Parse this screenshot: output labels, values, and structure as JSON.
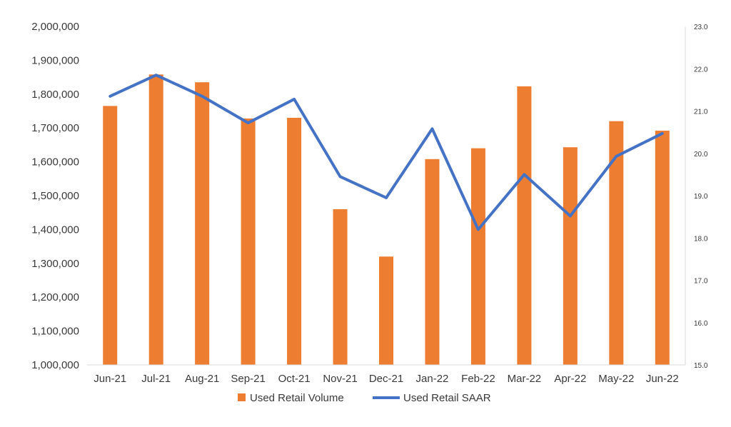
{
  "chart_data": {
    "type": "bar",
    "categories": [
      "Jun-21",
      "Jul-21",
      "Aug-21",
      "Sep-21",
      "Oct-21",
      "Nov-21",
      "Dec-21",
      "Jan-22",
      "Feb-22",
      "Mar-22",
      "Apr-22",
      "May-22",
      "Jun-22"
    ],
    "series": [
      {
        "name": "Used Retail Volume",
        "type": "bar",
        "axis": "left",
        "color": "#ED7D31",
        "values": [
          1765000,
          1858000,
          1835000,
          1728000,
          1730000,
          1460000,
          1320000,
          1608000,
          1640000,
          1823000,
          1643000,
          1720000,
          1692000
        ]
      },
      {
        "name": "Used Retail SAAR",
        "type": "line",
        "axis": "right",
        "color": "#4472C4",
        "values": [
          21.35,
          21.85,
          21.35,
          20.72,
          21.28,
          19.45,
          18.95,
          20.58,
          18.2,
          19.5,
          18.52,
          19.93,
          20.47
        ]
      }
    ],
    "y_left": {
      "range": [
        1000000,
        2000000
      ],
      "ticks": [
        "1,000,000",
        "1,100,000",
        "1,200,000",
        "1,300,000",
        "1,400,000",
        "1,500,000",
        "1,600,000",
        "1,700,000",
        "1,800,000",
        "1,900,000",
        "2,000,000"
      ]
    },
    "y_right": {
      "range": [
        15.0,
        23.0
      ],
      "ticks": [
        "15.0",
        "16.0",
        "17.0",
        "18.0",
        "19.0",
        "20.0",
        "21.0",
        "22.0",
        "23.0"
      ]
    },
    "title": "",
    "xlabel": "",
    "ylabel": "",
    "grid": false,
    "legend_position": "bottom"
  }
}
